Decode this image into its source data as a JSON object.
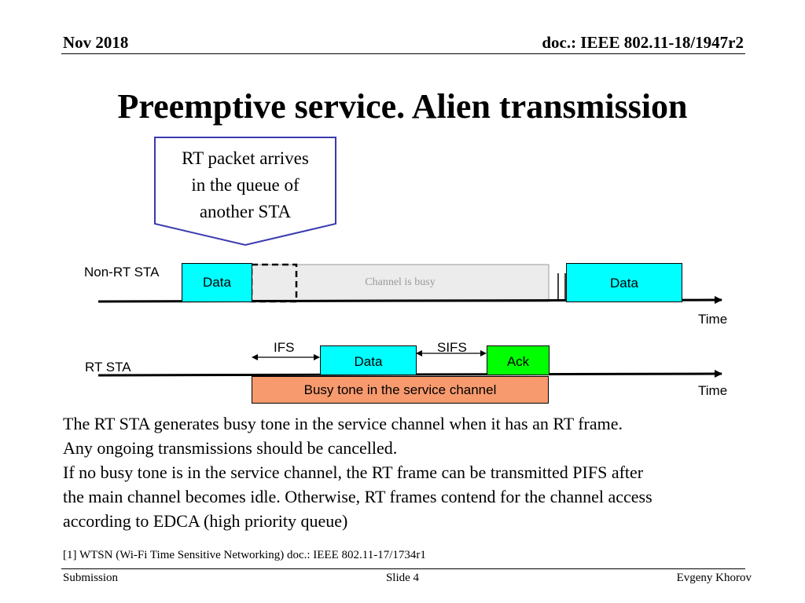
{
  "header": {
    "date": "Nov 2018",
    "doc": "doc.: IEEE 802.11-18/1947r2"
  },
  "title": "Preemptive service.  Alien transmission",
  "callout": {
    "lines": [
      "RT packet arrives",
      "in the queue of",
      "another STA"
    ]
  },
  "diagram": {
    "non_rt": {
      "label": "Non-RT STA",
      "data1": "Data",
      "busy": "Channel is busy",
      "data2": "Data",
      "time": "Time"
    },
    "rt": {
      "label": "RT STA",
      "ifs": "IFS",
      "sifs": "SIFS",
      "data": "Data",
      "ack": "Ack",
      "busy_tone": "Busy tone in the service channel",
      "time": "Time"
    },
    "colors": {
      "data": "#00ffff",
      "ack": "#00ff00",
      "busy_tone": "#f79a6e",
      "busy_channel": "#ececec",
      "callout_border": "#3a3ab0"
    }
  },
  "paragraph": [
    "The RT STA generates busy tone in the service channel when it has an RT frame.",
    "Any ongoing transmissions should be cancelled.",
    "If no busy tone is in the service channel, the RT frame can be transmitted PIFS after",
    "the main channel becomes idle. Otherwise, RT frames contend for the channel access",
    "according to EDCA (high priority queue)"
  ],
  "reference": "[1] WTSN (Wi-Fi Time Sensitive Networking) doc.: IEEE 802.11-17/1734r1",
  "footer": {
    "left": "Submission",
    "center": "Slide 4",
    "right": "Evgeny Khorov"
  }
}
